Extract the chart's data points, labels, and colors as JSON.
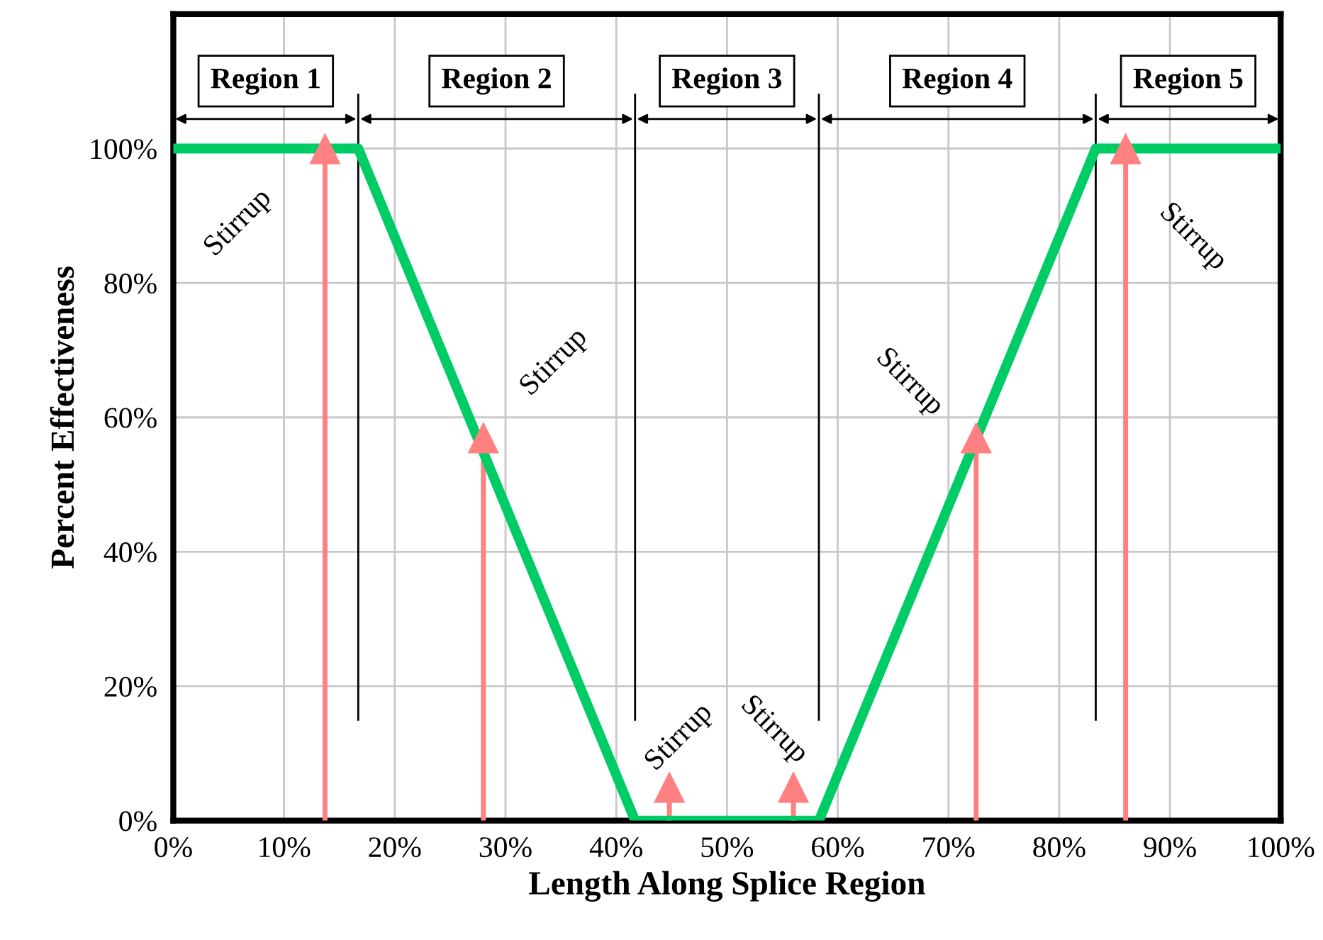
{
  "chart_data": {
    "type": "line",
    "xlabel": "Length Along Splice Region",
    "ylabel": "Percent Effectiveness",
    "series": [
      {
        "color": "#00cc66",
        "x": [
          0,
          16.7,
          41.7,
          58.3,
          83.3,
          100
        ],
        "values": [
          100,
          100,
          0,
          0,
          100,
          100
        ]
      },
      {
        "type": "lollipop",
        "color": "#ff8080",
        "marker": "triangle",
        "x": [
          13.7,
          28,
          44.8,
          56,
          72.5,
          86
        ],
        "values": [
          100,
          57,
          5,
          5,
          57,
          100
        ]
      }
    ],
    "xlim": [
      0,
      100
    ],
    "xticks": [
      {
        "value": 0,
        "label": "0%"
      },
      {
        "value": 10,
        "label": "10%"
      },
      {
        "value": 20,
        "label": "20%"
      },
      {
        "value": 30,
        "label": "30%"
      },
      {
        "value": 40,
        "label": "40%"
      },
      {
        "value": 50,
        "label": "50%"
      },
      {
        "value": 60,
        "label": "60%"
      },
      {
        "value": 70,
        "label": "70%"
      },
      {
        "value": 80,
        "label": "80%"
      },
      {
        "value": 90,
        "label": "90%"
      },
      {
        "value": 100,
        "label": "100%"
      }
    ],
    "ylim": [
      0,
      120
    ],
    "yticks": [
      {
        "value": 0,
        "label": "0%"
      },
      {
        "value": 20,
        "label": "20%"
      },
      {
        "value": 40,
        "label": "40%"
      },
      {
        "value": 60,
        "label": "60%"
      },
      {
        "value": 80,
        "label": "80%"
      },
      {
        "value": 100,
        "label": "100%"
      },
      {
        "value": 120,
        "label": null
      }
    ],
    "grid": true,
    "ref_lines": [
      {
        "axis": "x",
        "value": 16.7,
        "color": "#000000"
      },
      {
        "axis": "x",
        "value": 41.7,
        "color": "#000000"
      },
      {
        "axis": "x",
        "value": 58.3,
        "color": "#000000"
      },
      {
        "axis": "x",
        "value": 83.3,
        "color": "#000000"
      }
    ],
    "annotations": [
      "Region 1",
      "Region 2",
      "Region 3",
      "Region 4",
      "Region 5",
      "Stirrup",
      "Stirrup",
      "Stirrup",
      "Stirrup",
      "Stirrup",
      "Stirrup"
    ]
  }
}
